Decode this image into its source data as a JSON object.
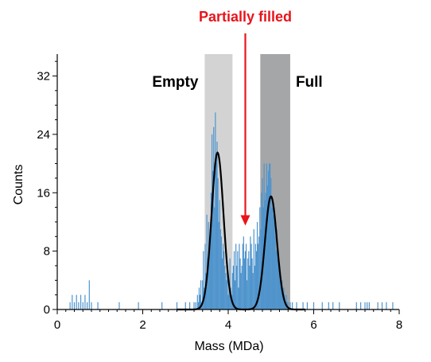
{
  "chart_data": {
    "type": "histogram",
    "title": "",
    "xlabel": "Mass (MDa)",
    "ylabel": "Counts",
    "xlim": [
      0,
      8
    ],
    "ylim": [
      0,
      35
    ],
    "xticks": [
      0,
      2,
      4,
      6,
      8
    ],
    "xtick_labels": [
      "0",
      "2",
      "4",
      "6",
      "8"
    ],
    "yticks": [
      0,
      8,
      16,
      24,
      32
    ],
    "ytick_labels": [
      "0",
      "8",
      "16",
      "24",
      "32"
    ],
    "grid": false,
    "bar_color": "#4f94cd",
    "bin_width": 0.02,
    "histogram": {
      "x": [
        0.3,
        0.35,
        0.4,
        0.45,
        0.5,
        0.55,
        0.6,
        0.65,
        0.7,
        0.75,
        0.8,
        0.95,
        1.45,
        1.9,
        2.45,
        2.8,
        3.0,
        3.1,
        3.2,
        3.24,
        3.28,
        3.3,
        3.32,
        3.34,
        3.36,
        3.38,
        3.4,
        3.42,
        3.44,
        3.46,
        3.48,
        3.5,
        3.52,
        3.54,
        3.56,
        3.58,
        3.6,
        3.62,
        3.64,
        3.66,
        3.68,
        3.7,
        3.72,
        3.74,
        3.76,
        3.78,
        3.8,
        3.82,
        3.84,
        3.86,
        3.88,
        3.9,
        3.92,
        3.94,
        3.96,
        3.98,
        4.0,
        4.02,
        4.04,
        4.06,
        4.08,
        4.1,
        4.12,
        4.14,
        4.16,
        4.18,
        4.2,
        4.22,
        4.24,
        4.26,
        4.28,
        4.3,
        4.32,
        4.34,
        4.36,
        4.38,
        4.4,
        4.42,
        4.44,
        4.46,
        4.48,
        4.5,
        4.52,
        4.54,
        4.56,
        4.58,
        4.6,
        4.62,
        4.64,
        4.66,
        4.68,
        4.7,
        4.72,
        4.74,
        4.76,
        4.78,
        4.8,
        4.82,
        4.84,
        4.86,
        4.88,
        4.9,
        4.92,
        4.94,
        4.96,
        4.98,
        5.0,
        5.02,
        5.04,
        5.06,
        5.08,
        5.1,
        5.12,
        5.14,
        5.16,
        5.18,
        5.2,
        5.22,
        5.24,
        5.26,
        5.28,
        5.3,
        5.32,
        5.34,
        5.36,
        5.38,
        5.4,
        5.45,
        5.5,
        5.6,
        5.75,
        5.85,
        6.0,
        6.2,
        6.35,
        6.45,
        6.6,
        7.0,
        7.1,
        7.2,
        7.25,
        7.3,
        7.5,
        7.6,
        7.7,
        7.85
      ],
      "counts": [
        1,
        2,
        1,
        2,
        1,
        2,
        1,
        2,
        1,
        4,
        1,
        1,
        1,
        1,
        1,
        1,
        1,
        1,
        1,
        1,
        2,
        1,
        3,
        2,
        4,
        1,
        4,
        8,
        3,
        9,
        5,
        13,
        7,
        12,
        9,
        11,
        16,
        24,
        19,
        25,
        14,
        27,
        21,
        23,
        18,
        12,
        15,
        11,
        10,
        7,
        9,
        8,
        6,
        5,
        4,
        6,
        2,
        4,
        7,
        3,
        2,
        5,
        6,
        8,
        4,
        9,
        6,
        8,
        3,
        9,
        7,
        5,
        6,
        9,
        10,
        7,
        8,
        9,
        4,
        7,
        8,
        6,
        10,
        9,
        7,
        5,
        11,
        6,
        9,
        8,
        12,
        9,
        10,
        14,
        11,
        16,
        18,
        14,
        20,
        15,
        16,
        20,
        17,
        19,
        20,
        20,
        18,
        14,
        15,
        13,
        12,
        10,
        8,
        11,
        7,
        6,
        5,
        4,
        3,
        4,
        2,
        3,
        2,
        1,
        2,
        1,
        1,
        1,
        1,
        1,
        1,
        1,
        1,
        1,
        1,
        1,
        1,
        1,
        1,
        1,
        1,
        1,
        1,
        1,
        1,
        1
      ],
      "fit_curve": {
        "type": "gaussian_sum",
        "color": "#000000",
        "peaks": [
          {
            "center": 3.75,
            "sigma": 0.14,
            "amplitude": 21.5
          },
          {
            "center": 5.0,
            "sigma": 0.14,
            "amplitude": 15.5
          }
        ]
      }
    },
    "regions": [
      {
        "label": "Empty",
        "x_range": [
          3.45,
          4.1
        ],
        "color": "#d3d3d4",
        "label_position": "left"
      },
      {
        "label": "Full",
        "x_range": [
          4.75,
          5.45
        ],
        "color": "#a5a6a8",
        "label_position": "right"
      }
    ],
    "annotations": [
      {
        "text": "Partially filled",
        "x": 4.4,
        "y_tip": 11.5,
        "color": "#e8141b"
      }
    ]
  }
}
